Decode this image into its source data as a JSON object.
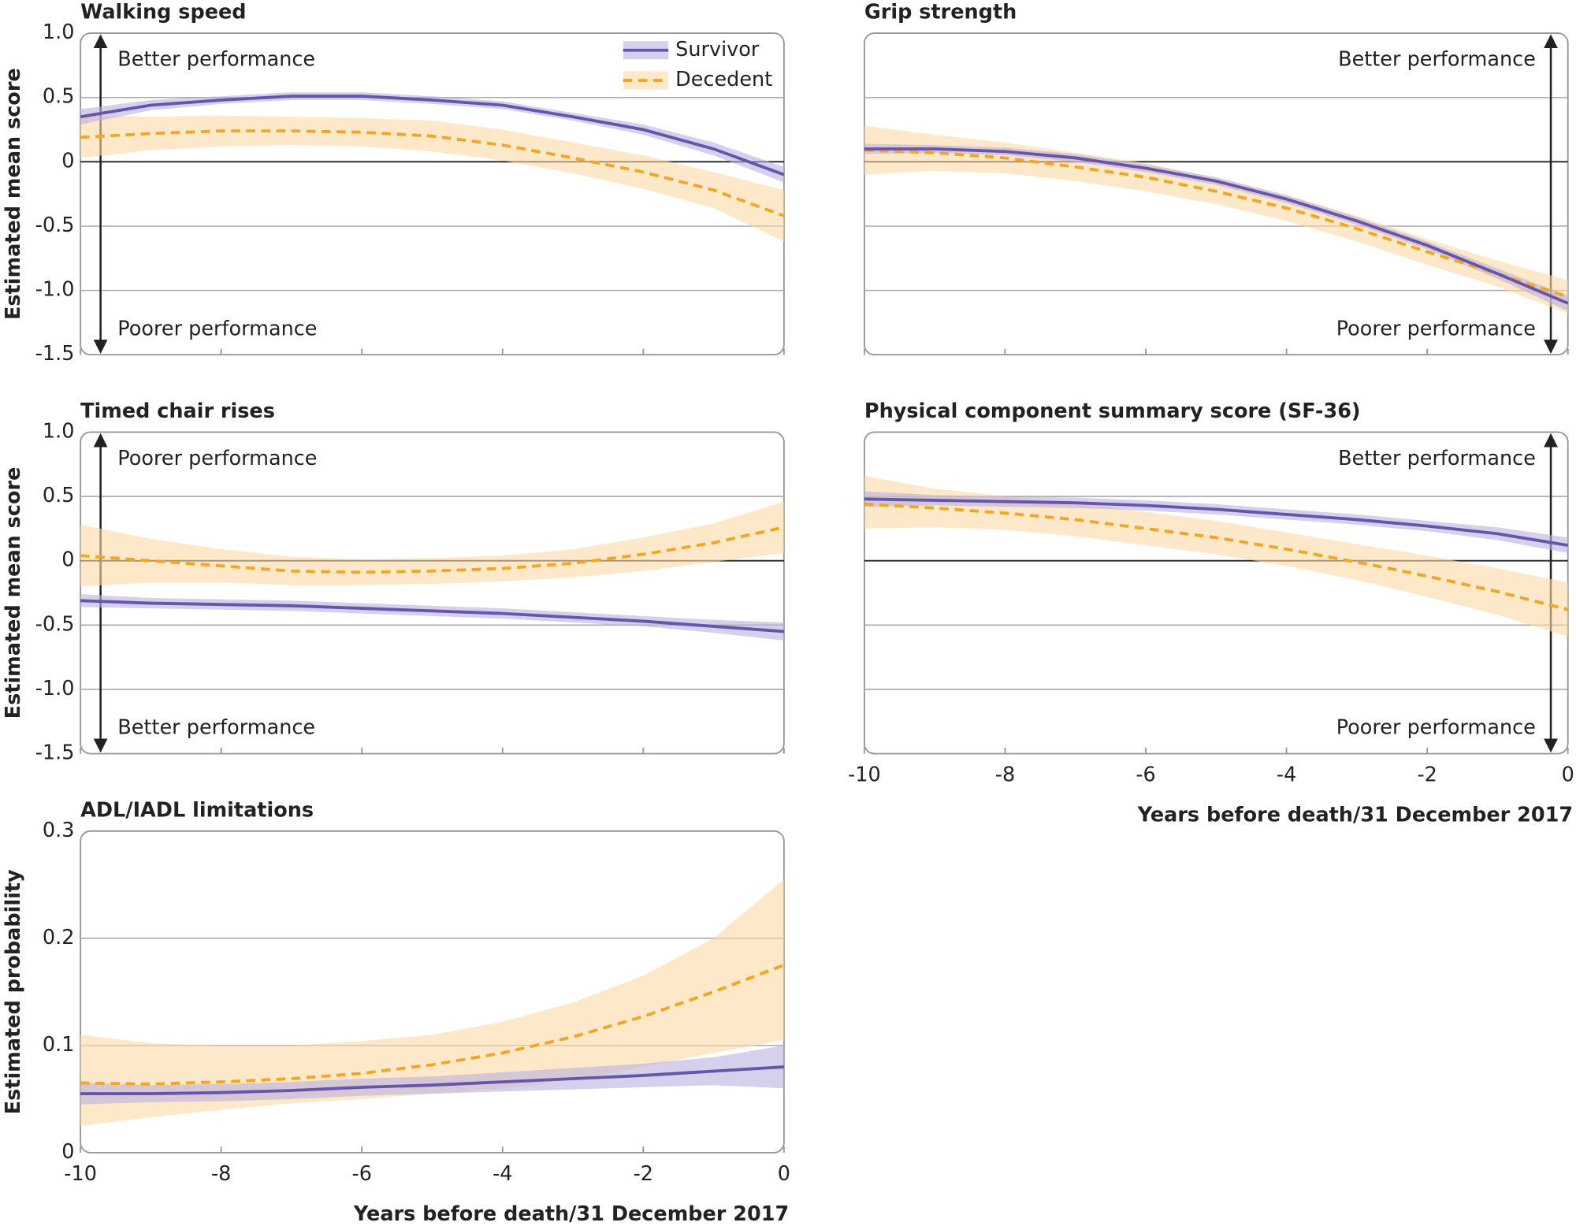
{
  "chart_data": [
    {
      "type": "line",
      "title": "Walking speed",
      "ylabel": "Estimated mean score",
      "ytick_labels": true,
      "xtick_labels": false,
      "arrow_side": "left",
      "legend": "upper right",
      "annotations": [
        {
          "text": "Better performance",
          "position": "top"
        },
        {
          "text": "Poorer performance",
          "position": "bottom"
        }
      ],
      "x": [
        -10,
        -9,
        -8,
        -7,
        -6,
        -5,
        -4,
        -3,
        -2,
        -1,
        0
      ],
      "xlim": [
        -10,
        0
      ],
      "xticks": [
        -10,
        -8,
        -6,
        -4,
        -2,
        0
      ],
      "ylim": [
        -1.5,
        1
      ],
      "yticks": [
        {
          "value": 1,
          "label": "1.0"
        },
        0.5,
        0,
        -0.5,
        {
          "value": -1,
          "label": "-1.0"
        },
        -1.5
      ],
      "series": [
        {
          "name": "Survivor",
          "color": "#6655a8",
          "band_color": "#b9b0de",
          "dashed": false,
          "values": [
            0.35,
            0.44,
            0.48,
            0.51,
            0.51,
            0.48,
            0.44,
            0.35,
            0.25,
            0.1,
            -0.1
          ],
          "lower": [
            0.29,
            0.4,
            0.45,
            0.48,
            0.48,
            0.45,
            0.41,
            0.32,
            0.21,
            0.05,
            -0.16
          ],
          "upper": [
            0.41,
            0.48,
            0.51,
            0.54,
            0.54,
            0.51,
            0.47,
            0.38,
            0.29,
            0.15,
            -0.04
          ]
        },
        {
          "name": "Decedent",
          "color": "#f2a71e",
          "band_color": "#fdd9a6",
          "dashed": true,
          "values": [
            0.19,
            0.22,
            0.24,
            0.24,
            0.23,
            0.2,
            0.13,
            0.03,
            -0.08,
            -0.22,
            -0.42
          ],
          "lower": [
            0.03,
            0.09,
            0.12,
            0.13,
            0.12,
            0.08,
            0.01,
            -0.09,
            -0.21,
            -0.36,
            -0.62
          ],
          "upper": [
            0.36,
            0.35,
            0.36,
            0.35,
            0.34,
            0.32,
            0.25,
            0.15,
            0.05,
            -0.08,
            -0.22
          ]
        }
      ]
    },
    {
      "type": "line",
      "title": "Grip strength",
      "ytick_labels": false,
      "xtick_labels": false,
      "arrow_side": "right",
      "annotations": [
        {
          "text": "Better performance",
          "position": "top"
        },
        {
          "text": "Poorer performance",
          "position": "bottom"
        }
      ],
      "x": [
        -10,
        -9,
        -8,
        -7,
        -6,
        -5,
        -4,
        -3,
        -2,
        -1,
        0
      ],
      "xlim": [
        -10,
        0
      ],
      "xticks": [
        -10,
        -8,
        -6,
        -4,
        -2,
        0
      ],
      "ylim": [
        -1.5,
        1
      ],
      "yticks": [
        {
          "value": 1,
          "label": "1.0"
        },
        0.5,
        0,
        -0.5,
        {
          "value": -1,
          "label": "-1.0"
        },
        -1.5
      ],
      "series": [
        {
          "name": "Survivor",
          "color": "#6655a8",
          "band_color": "#b9b0de",
          "dashed": false,
          "values": [
            0.1,
            0.1,
            0.08,
            0.03,
            -0.05,
            -0.15,
            -0.29,
            -0.46,
            -0.65,
            -0.87,
            -1.1
          ],
          "lower": [
            0.06,
            0.07,
            0.05,
            0.0,
            -0.08,
            -0.18,
            -0.32,
            -0.49,
            -0.68,
            -0.91,
            -1.16
          ],
          "upper": [
            0.14,
            0.13,
            0.11,
            0.06,
            -0.02,
            -0.12,
            -0.26,
            -0.43,
            -0.62,
            -0.83,
            -1.04
          ]
        },
        {
          "name": "Decedent",
          "color": "#f2a71e",
          "band_color": "#fdd9a6",
          "dashed": true,
          "values": [
            0.09,
            0.07,
            0.03,
            -0.04,
            -0.12,
            -0.23,
            -0.36,
            -0.52,
            -0.7,
            -0.87,
            -1.05
          ],
          "lower": [
            -0.1,
            -0.07,
            -0.09,
            -0.15,
            -0.23,
            -0.33,
            -0.46,
            -0.62,
            -0.8,
            -0.97,
            -1.18
          ],
          "upper": [
            0.28,
            0.21,
            0.15,
            0.07,
            -0.01,
            -0.13,
            -0.26,
            -0.42,
            -0.6,
            -0.77,
            -0.92
          ]
        }
      ]
    },
    {
      "type": "line",
      "title": "Timed chair rises",
      "ylabel": "Estimated mean score",
      "ytick_labels": true,
      "xtick_labels": false,
      "arrow_side": "left",
      "annotations": [
        {
          "text": "Poorer performance",
          "position": "top"
        },
        {
          "text": "Better performance",
          "position": "bottom"
        }
      ],
      "x": [
        -10,
        -9,
        -8,
        -7,
        -6,
        -5,
        -4,
        -3,
        -2,
        -1,
        0
      ],
      "xlim": [
        -10,
        0
      ],
      "xticks": [
        -10,
        -8,
        -6,
        -4,
        -2,
        0
      ],
      "ylim": [
        -1.5,
        1
      ],
      "yticks": [
        {
          "value": 1,
          "label": "1.0"
        },
        0.5,
        0,
        -0.5,
        {
          "value": -1,
          "label": "-1.0"
        },
        -1.5
      ],
      "series": [
        {
          "name": "Survivor",
          "color": "#6655a8",
          "band_color": "#b9b0de",
          "dashed": false,
          "values": [
            -0.31,
            -0.33,
            -0.34,
            -0.35,
            -0.37,
            -0.39,
            -0.41,
            -0.44,
            -0.47,
            -0.51,
            -0.55
          ],
          "lower": [
            -0.36,
            -0.37,
            -0.38,
            -0.39,
            -0.41,
            -0.43,
            -0.45,
            -0.48,
            -0.51,
            -0.56,
            -0.62
          ],
          "upper": [
            -0.26,
            -0.29,
            -0.3,
            -0.31,
            -0.33,
            -0.35,
            -0.37,
            -0.4,
            -0.43,
            -0.46,
            -0.48
          ]
        },
        {
          "name": "Decedent",
          "color": "#f2a71e",
          "band_color": "#fdd9a6",
          "dashed": true,
          "values": [
            0.04,
            0.0,
            -0.04,
            -0.08,
            -0.09,
            -0.08,
            -0.06,
            -0.02,
            0.05,
            0.14,
            0.26
          ],
          "lower": [
            -0.2,
            -0.17,
            -0.17,
            -0.19,
            -0.19,
            -0.18,
            -0.16,
            -0.13,
            -0.08,
            -0.01,
            0.06
          ],
          "upper": [
            0.28,
            0.17,
            0.09,
            0.03,
            0.01,
            0.02,
            0.04,
            0.09,
            0.18,
            0.29,
            0.46
          ]
        }
      ]
    },
    {
      "type": "line",
      "title": "Physical component summary score (SF-36)",
      "xlabel": "Years before death/31 December 2017",
      "ytick_labels": false,
      "xtick_labels": true,
      "arrow_side": "right",
      "annotations": [
        {
          "text": "Better performance",
          "position": "top"
        },
        {
          "text": "Poorer performance",
          "position": "bottom"
        }
      ],
      "x": [
        -10,
        -9,
        -8,
        -7,
        -6,
        -5,
        -4,
        -3,
        -2,
        -1,
        0
      ],
      "xlim": [
        -10,
        0
      ],
      "xticks": [
        -10,
        -8,
        -6,
        -4,
        -2,
        0
      ],
      "ylim": [
        -1.5,
        1
      ],
      "yticks": [
        {
          "value": 1,
          "label": "1.0"
        },
        0.5,
        0,
        -0.5,
        {
          "value": -1,
          "label": "-1.0"
        },
        -1.5
      ],
      "series": [
        {
          "name": "Survivor",
          "color": "#6655a8",
          "band_color": "#b9b0de",
          "dashed": false,
          "values": [
            0.48,
            0.47,
            0.46,
            0.45,
            0.43,
            0.4,
            0.36,
            0.32,
            0.27,
            0.21,
            0.12
          ],
          "lower": [
            0.42,
            0.43,
            0.42,
            0.41,
            0.39,
            0.36,
            0.32,
            0.28,
            0.23,
            0.16,
            0.06
          ],
          "upper": [
            0.54,
            0.51,
            0.5,
            0.49,
            0.47,
            0.44,
            0.4,
            0.36,
            0.31,
            0.26,
            0.18
          ]
        },
        {
          "name": "Decedent",
          "color": "#f2a71e",
          "band_color": "#fdd9a6",
          "dashed": true,
          "values": [
            0.44,
            0.41,
            0.37,
            0.32,
            0.25,
            0.18,
            0.09,
            -0.01,
            -0.12,
            -0.24,
            -0.38
          ],
          "lower": [
            0.25,
            0.26,
            0.24,
            0.19,
            0.12,
            0.05,
            -0.04,
            -0.15,
            -0.28,
            -0.42,
            -0.59
          ],
          "upper": [
            0.66,
            0.56,
            0.5,
            0.45,
            0.38,
            0.31,
            0.22,
            0.13,
            0.04,
            -0.06,
            -0.17
          ]
        }
      ]
    },
    {
      "type": "line",
      "title": "ADL/IADL limitations",
      "ylabel": "Estimated probability",
      "xlabel": "Years before death/31 December 2017",
      "ytick_labels": true,
      "xtick_labels": true,
      "x": [
        -10,
        -9,
        -8,
        -7,
        -6,
        -5,
        -4,
        -3,
        -2,
        -1,
        0
      ],
      "xlim": [
        -10,
        0
      ],
      "xticks": [
        -10,
        -8,
        -6,
        -4,
        -2,
        0
      ],
      "ylim": [
        0,
        0.3
      ],
      "yticks": [
        0.3,
        0.2,
        0.1,
        0
      ],
      "series": [
        {
          "name": "Survivor",
          "color": "#6655a8",
          "band_color": "#b9b0de",
          "dashed": false,
          "values": [
            0.055,
            0.055,
            0.056,
            0.058,
            0.061,
            0.063,
            0.066,
            0.069,
            0.072,
            0.076,
            0.08
          ],
          "lower": [
            0.045,
            0.047,
            0.048,
            0.05,
            0.053,
            0.055,
            0.057,
            0.059,
            0.061,
            0.063,
            0.06
          ],
          "upper": [
            0.065,
            0.063,
            0.064,
            0.066,
            0.069,
            0.071,
            0.075,
            0.079,
            0.083,
            0.089,
            0.1
          ]
        },
        {
          "name": "Decedent",
          "color": "#f2a71e",
          "band_color": "#fdd9a6",
          "dashed": true,
          "values": [
            0.065,
            0.064,
            0.066,
            0.069,
            0.074,
            0.082,
            0.093,
            0.108,
            0.127,
            0.15,
            0.175
          ],
          "lower": [
            0.025,
            0.033,
            0.04,
            0.046,
            0.05,
            0.055,
            0.06,
            0.068,
            0.08,
            0.093,
            0.105
          ],
          "upper": [
            0.11,
            0.102,
            0.1,
            0.1,
            0.104,
            0.11,
            0.122,
            0.14,
            0.165,
            0.2,
            0.255
          ]
        }
      ]
    }
  ]
}
